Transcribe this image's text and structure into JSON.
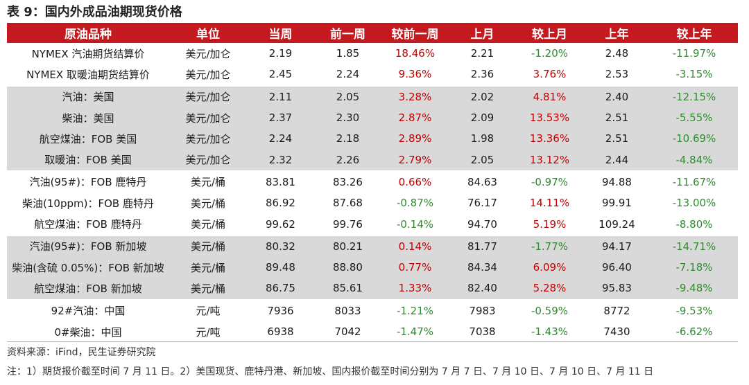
{
  "title": "表 9：国内外成品油期现货价格",
  "columns": [
    "原油品种",
    "单位",
    "当周",
    "前一周",
    "较前一周",
    "上月",
    "较上月",
    "上年",
    "较上年"
  ],
  "rows": [
    [
      "NYMEX 汽油期货结算价",
      "美元/加仑",
      "2.19",
      "1.85",
      "18.46%",
      "2.21",
      "-1.20%",
      "2.48",
      "-11.97%"
    ],
    [
      "NYMEX 取暖油期货结算价",
      "美元/加仑",
      "2.45",
      "2.24",
      "9.36%",
      "2.36",
      "3.76%",
      "2.53",
      "-3.15%"
    ],
    [
      "汽油：美国",
      "美元/加仑",
      "2.11",
      "2.05",
      "3.28%",
      "2.02",
      "4.81%",
      "2.40",
      "-12.15%"
    ],
    [
      "柴油：美国",
      "美元/加仑",
      "2.37",
      "2.30",
      "2.87%",
      "2.09",
      "13.53%",
      "2.51",
      "-5.55%"
    ],
    [
      "航空煤油：FOB 美国",
      "美元/加仑",
      "2.24",
      "2.18",
      "2.89%",
      "1.98",
      "13.36%",
      "2.51",
      "-10.69%"
    ],
    [
      "取暖油：FOB 美国",
      "美元/加仑",
      "2.32",
      "2.26",
      "2.79%",
      "2.05",
      "13.12%",
      "2.44",
      "-4.84%"
    ],
    [
      "汽油(95#)：FOB 鹿特丹",
      "美元/桶",
      "83.81",
      "83.26",
      "0.66%",
      "84.63",
      "-0.97%",
      "94.88",
      "-11.67%"
    ],
    [
      "柴油(10ppm)：FOB 鹿特丹",
      "美元/桶",
      "86.92",
      "87.68",
      "-0.87%",
      "76.17",
      "14.11%",
      "99.91",
      "-13.00%"
    ],
    [
      "航空煤油：FOB 鹿特丹",
      "美元/桶",
      "99.62",
      "99.76",
      "-0.14%",
      "94.70",
      "5.19%",
      "109.24",
      "-8.80%"
    ],
    [
      "汽油(95#)：FOB 新加坡",
      "美元/桶",
      "80.32",
      "80.21",
      "0.14%",
      "81.77",
      "-1.77%",
      "94.17",
      "-14.71%"
    ],
    [
      "柴油(含硫 0.05%)：FOB 新加坡",
      "美元/桶",
      "89.48",
      "88.80",
      "0.77%",
      "84.34",
      "6.09%",
      "96.40",
      "-7.18%"
    ],
    [
      "航空煤油：FOB 新加坡",
      "美元/桶",
      "86.75",
      "85.61",
      "1.33%",
      "82.40",
      "5.28%",
      "95.83",
      "-9.48%"
    ],
    [
      "92#汽油：中国",
      "元/吨",
      "7936",
      "8033",
      "-1.21%",
      "7983",
      "-0.59%",
      "8772",
      "-9.53%"
    ],
    [
      "0#柴油：中国",
      "元/吨",
      "6938",
      "7042",
      "-1.47%",
      "7038",
      "-1.43%",
      "7430",
      "-6.62%"
    ]
  ],
  "colors": {
    "header_bg": "#c41a1f",
    "shade_bg": "#d9d9d9",
    "positive": "#c00000",
    "negative": "#2e8b2e"
  },
  "source": "资料来源：iFind，民生证券研究院",
  "note": "注：1）期货报价截至时间 7 月 11 日。2）美国现货、鹿特丹港、新加坡、国内报价截至时间分别为 7 月 7 日、7 月 10 日、7 月 10 日、7 月 11 日"
}
